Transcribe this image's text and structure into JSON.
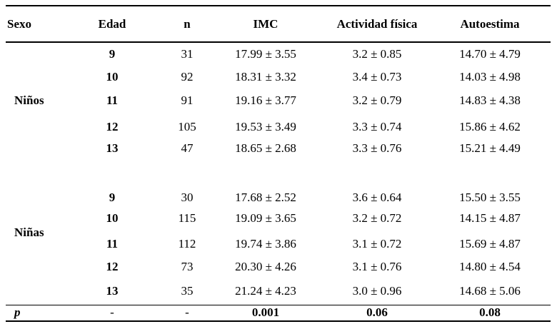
{
  "table": {
    "headers": {
      "sexo": "Sexo",
      "edad": "Edad",
      "n": "n",
      "imc": "IMC",
      "actividad": "Actividad física",
      "autoestima": "Autoestima"
    },
    "groups": [
      {
        "label": "Niños",
        "rows": [
          {
            "edad": "9",
            "n": "31",
            "imc": "17.99 ± 3.55",
            "actividad": "3.2 ± 0.85",
            "autoestima": "14.70 ± 4.79"
          },
          {
            "edad": "10",
            "n": "92",
            "imc": "18.31 ± 3.32",
            "actividad": "3.4 ± 0.73",
            "autoestima": "14.03 ± 4.98"
          },
          {
            "edad": "11",
            "n": "91",
            "imc": "19.16 ± 3.77",
            "actividad": "3.2 ± 0.79",
            "autoestima": "14.83 ± 4.38"
          },
          {
            "edad": "12",
            "n": "105",
            "imc": "19.53 ± 3.49",
            "actividad": "3.3 ± 0.74",
            "autoestima": "15.86 ± 4.62"
          },
          {
            "edad": "13",
            "n": "47",
            "imc": "18.65 ± 2.68",
            "actividad": "3.3 ± 0.76",
            "autoestima": "15.21 ± 4.49"
          }
        ]
      },
      {
        "label": "Niñas",
        "rows": [
          {
            "edad": "9",
            "n": "30",
            "imc": "17.68 ± 2.52",
            "actividad": "3.6 ± 0.64",
            "autoestima": "15.50 ± 3.55"
          },
          {
            "edad": "10",
            "n": "115",
            "imc": "19.09 ± 3.65",
            "actividad": "3.2 ± 0.72",
            "autoestima": "14.15 ± 4.87"
          },
          {
            "edad": "11",
            "n": "112",
            "imc": "19.74 ± 3.86",
            "actividad": "3.1 ± 0.72",
            "autoestima": "15.69 ± 4.87"
          },
          {
            "edad": "12",
            "n": "73",
            "imc": "20.30 ± 4.26",
            "actividad": "3.1 ± 0.76",
            "autoestima": "14.80 ± 4.54"
          },
          {
            "edad": "13",
            "n": "35",
            "imc": "21.24 ± 4.23",
            "actividad": "3.0 ± 0.96",
            "autoestima": "14.68 ± 5.06"
          }
        ]
      }
    ],
    "p_row": {
      "label": "p",
      "edad": "-",
      "n": "-",
      "imc": "0.001",
      "actividad": "0.06",
      "autoestima": "0.08"
    }
  }
}
